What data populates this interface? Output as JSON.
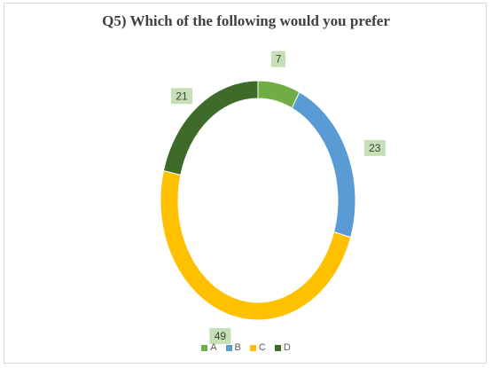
{
  "chart_data": {
    "type": "donut",
    "title": "Q5) Which of the following would you prefer",
    "categories": [
      "A",
      "B",
      "C",
      "D"
    ],
    "values": [
      7,
      23,
      49,
      21
    ],
    "colors": [
      "#70ad47",
      "#5b9bd5",
      "#ffc000",
      "#3e6b29"
    ],
    "data_labels": [
      "7",
      "23",
      "49",
      "21"
    ],
    "legend": {
      "position": "bottom",
      "entries": [
        "A",
        "B",
        "C",
        "D"
      ]
    },
    "label_background": "#c5e0b4"
  }
}
